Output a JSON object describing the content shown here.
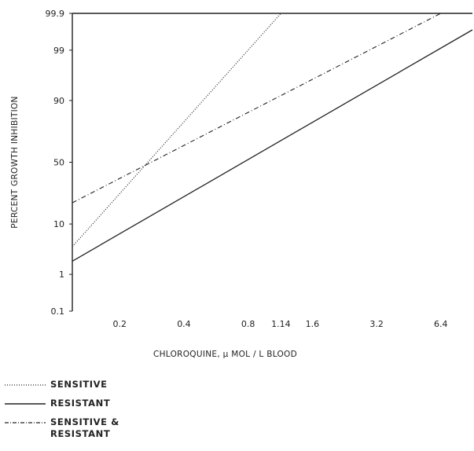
{
  "chart_data": {
    "type": "line",
    "xlabel": "CHLOROQUINE, μ MOL / L BLOOD",
    "ylabel": "PERCENT GROWTH INHIBITION",
    "x_ticks": [
      "0.2",
      "0.4",
      "0.8",
      "1.14",
      "1.6",
      "3.2",
      "6.4"
    ],
    "x_tick_values": [
      0.2,
      0.4,
      0.8,
      1.14,
      1.6,
      3.2,
      6.4
    ],
    "y_ticks": [
      "0.1",
      "1",
      "10",
      "50",
      "90",
      "99",
      "99.9"
    ],
    "y_tick_values": [
      0.1,
      1,
      10,
      50,
      90,
      99,
      99.9
    ],
    "x_scale": "log",
    "y_scale": "probability",
    "xlim": [
      0.12,
      9.0
    ],
    "ylim": [
      0.1,
      99.9
    ],
    "series": [
      {
        "name": "SENSITIVE",
        "style": "dotted",
        "points": [
          [
            0.12,
            4
          ],
          [
            1.14,
            99.9
          ]
        ]
      },
      {
        "name": "RESISTANT",
        "style": "solid",
        "points": [
          [
            0.12,
            2
          ],
          [
            9.0,
            99.7
          ]
        ]
      },
      {
        "name": "SENSITIVE & RESISTANT",
        "style": "dashdot",
        "points": [
          [
            0.12,
            20
          ],
          [
            6.4,
            99.9
          ]
        ]
      }
    ]
  },
  "legend": {
    "items": [
      {
        "label": "SENSITIVE",
        "line2": ""
      },
      {
        "label": "RESISTANT",
        "line2": ""
      },
      {
        "label": "SENSITIVE &",
        "line2": "RESISTANT"
      }
    ]
  }
}
